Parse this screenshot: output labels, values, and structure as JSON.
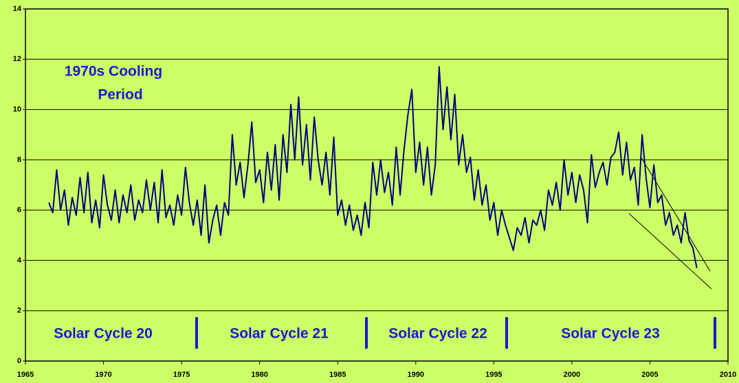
{
  "chart_data": {
    "type": "line",
    "annotations": [
      "1970s Cooling",
      "Period",
      "Solar Cycle 20",
      "Solar Cycle 21",
      "Solar Cycle 22",
      "Solar Cycle 23"
    ],
    "xlim": [
      1965,
      2010
    ],
    "xticks": [
      1965,
      1970,
      1975,
      1980,
      1985,
      1990,
      1995,
      2000,
      2005,
      2010
    ],
    "ylim": [
      0,
      14
    ],
    "yticks": [
      0,
      2,
      4,
      6,
      8,
      10,
      12,
      14
    ],
    "grid": true,
    "x": [
      1966.5,
      1966.75,
      1967,
      1967.25,
      1967.5,
      1967.75,
      1968,
      1968.25,
      1968.5,
      1968.75,
      1969,
      1969.25,
      1969.5,
      1969.75,
      1970,
      1970.25,
      1970.5,
      1970.75,
      1971,
      1971.25,
      1971.5,
      1971.75,
      1972,
      1972.25,
      1972.5,
      1972.75,
      1973,
      1973.25,
      1973.5,
      1973.75,
      1974,
      1974.25,
      1974.5,
      1974.75,
      1975,
      1975.25,
      1975.5,
      1975.75,
      1976,
      1976.25,
      1976.5,
      1976.75,
      1977,
      1977.25,
      1977.5,
      1977.75,
      1978,
      1978.25,
      1978.5,
      1978.75,
      1979,
      1979.25,
      1979.5,
      1979.75,
      1980,
      1980.25,
      1980.5,
      1980.75,
      1981,
      1981.25,
      1981.5,
      1981.75,
      1982,
      1982.25,
      1982.5,
      1982.75,
      1983,
      1983.25,
      1983.5,
      1983.75,
      1984,
      1984.25,
      1984.5,
      1984.75,
      1985,
      1985.25,
      1985.5,
      1985.75,
      1986,
      1986.25,
      1986.5,
      1986.75,
      1987,
      1987.25,
      1987.5,
      1987.75,
      1988,
      1988.25,
      1988.5,
      1988.75,
      1989,
      1989.25,
      1989.5,
      1989.75,
      1990,
      1990.25,
      1990.5,
      1990.75,
      1991,
      1991.25,
      1991.5,
      1991.75,
      1992,
      1992.25,
      1992.5,
      1992.75,
      1993,
      1993.25,
      1993.5,
      1993.75,
      1994,
      1994.25,
      1994.5,
      1994.75,
      1995,
      1995.25,
      1995.5,
      1995.75,
      1996,
      1996.25,
      1996.5,
      1996.75,
      1997,
      1997.25,
      1997.5,
      1997.75,
      1998,
      1998.25,
      1998.5,
      1998.75,
      1999,
      1999.25,
      1999.5,
      1999.75,
      2000,
      2000.25,
      2000.5,
      2000.75,
      2001,
      2001.25,
      2001.5,
      2001.75,
      2002,
      2002.25,
      2002.5,
      2002.75,
      2003,
      2003.25,
      2003.5,
      2003.75,
      2004,
      2004.25,
      2004.5,
      2004.75,
      2005,
      2005.25,
      2005.5,
      2005.75,
      2006,
      2006.25,
      2006.5,
      2006.75,
      2007,
      2007.25,
      2007.5,
      2007.75,
      2008
    ],
    "series": [
      {
        "color": "#000080",
        "values": [
          6.3,
          5.9,
          7.6,
          6.0,
          6.8,
          5.4,
          6.5,
          5.8,
          7.3,
          5.9,
          7.5,
          5.5,
          6.4,
          5.3,
          7.4,
          6.2,
          5.6,
          6.8,
          5.5,
          6.6,
          5.9,
          7.0,
          5.6,
          6.4,
          5.9,
          7.2,
          6.0,
          7.1,
          5.5,
          7.6,
          5.7,
          6.2,
          5.4,
          6.6,
          5.8,
          7.7,
          6.3,
          5.4,
          6.4,
          5.0,
          7.0,
          4.7,
          5.6,
          6.2,
          5.0,
          6.3,
          5.8,
          9.0,
          7.0,
          7.9,
          6.5,
          7.8,
          9.5,
          7.1,
          7.6,
          6.3,
          8.3,
          6.8,
          8.6,
          6.4,
          9.0,
          7.5,
          10.2,
          8.0,
          10.5,
          7.8,
          9.4,
          7.2,
          9.7,
          8.0,
          7.0,
          8.3,
          6.6,
          8.9,
          5.8,
          6.4,
          5.4,
          6.2,
          5.2,
          5.8,
          5.0,
          6.3,
          5.3,
          7.9,
          6.6,
          8.0,
          6.7,
          7.5,
          6.2,
          8.5,
          6.6,
          8.4,
          9.8,
          10.8,
          7.5,
          8.7,
          7.0,
          8.5,
          6.6,
          7.8,
          11.7,
          9.2,
          10.9,
          8.8,
          10.6,
          7.8,
          9.0,
          7.5,
          8.1,
          6.4,
          7.6,
          6.2,
          7.0,
          5.6,
          6.3,
          5.0,
          6.0,
          5.4,
          4.9,
          4.4,
          5.3,
          5.0,
          5.7,
          4.7,
          5.6,
          5.4,
          6.0,
          5.2,
          6.8,
          6.2,
          7.1,
          6.0,
          8.0,
          6.6,
          7.5,
          6.3,
          7.4,
          6.8,
          5.5,
          8.2,
          6.9,
          7.5,
          7.9,
          7.0,
          8.1,
          8.3,
          9.1,
          7.4,
          8.7,
          7.2,
          7.7,
          6.2,
          9.0,
          7.3,
          6.1,
          7.8,
          6.3,
          6.6,
          5.4,
          5.9,
          5.0,
          5.4,
          4.7,
          5.9,
          4.8,
          4.5,
          3.7
        ]
      }
    ]
  }
}
